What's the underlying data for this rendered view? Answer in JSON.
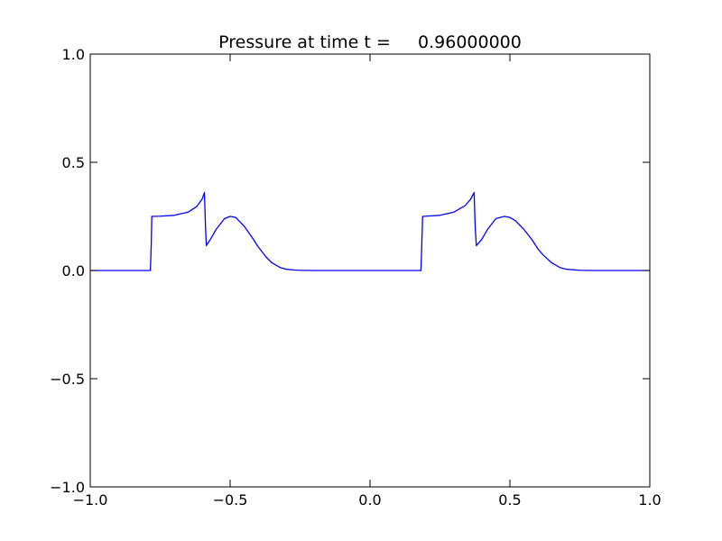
{
  "chart_data": {
    "type": "line",
    "title": "Pressure at time t =     0.96000000",
    "xlabel": "",
    "ylabel": "",
    "xlim": [
      -1.0,
      1.0
    ],
    "ylim": [
      -1.0,
      1.0
    ],
    "xticks": [
      -1.0,
      -0.5,
      0.0,
      0.5,
      1.0
    ],
    "xtick_labels": [
      "−1.0",
      "−0.5",
      "0.0",
      "0.5",
      "1.0"
    ],
    "yticks": [
      -1.0,
      -0.5,
      0.0,
      0.5,
      1.0
    ],
    "ytick_labels": [
      "−1.0",
      "−0.5",
      "0.0",
      "0.5",
      "1.0"
    ],
    "grid": false,
    "legend": "none",
    "series": [
      {
        "color": "#0000ff",
        "x": [
          -1.0,
          -0.9,
          -0.8,
          -0.785,
          -0.782,
          -0.78,
          -0.75,
          -0.7,
          -0.65,
          -0.62,
          -0.6,
          -0.592,
          -0.588,
          -0.585,
          -0.57,
          -0.55,
          -0.52,
          -0.5,
          -0.48,
          -0.45,
          -0.42,
          -0.4,
          -0.37,
          -0.35,
          -0.32,
          -0.3,
          -0.27,
          -0.25,
          -0.2,
          -0.1,
          0.0,
          0.1,
          0.17,
          0.182,
          0.185,
          0.188,
          0.2,
          0.25,
          0.3,
          0.34,
          0.36,
          0.372,
          0.376,
          0.38,
          0.4,
          0.42,
          0.45,
          0.48,
          0.5,
          0.52,
          0.55,
          0.58,
          0.6,
          0.62,
          0.65,
          0.68,
          0.7,
          0.75,
          0.8,
          0.9,
          1.0
        ],
        "y": [
          0.0,
          0.0,
          0.0,
          0.0,
          0.12,
          0.25,
          0.251,
          0.255,
          0.27,
          0.295,
          0.33,
          0.36,
          0.2,
          0.115,
          0.145,
          0.19,
          0.24,
          0.25,
          0.245,
          0.205,
          0.15,
          0.11,
          0.06,
          0.035,
          0.013,
          0.006,
          0.002,
          0.001,
          0.0,
          0.0,
          0.0,
          0.0,
          0.0,
          0.0,
          0.12,
          0.25,
          0.251,
          0.255,
          0.27,
          0.3,
          0.33,
          0.36,
          0.2,
          0.115,
          0.145,
          0.19,
          0.24,
          0.25,
          0.245,
          0.23,
          0.19,
          0.14,
          0.1,
          0.07,
          0.035,
          0.013,
          0.006,
          0.001,
          0.0,
          0.0,
          0.0
        ]
      }
    ]
  }
}
